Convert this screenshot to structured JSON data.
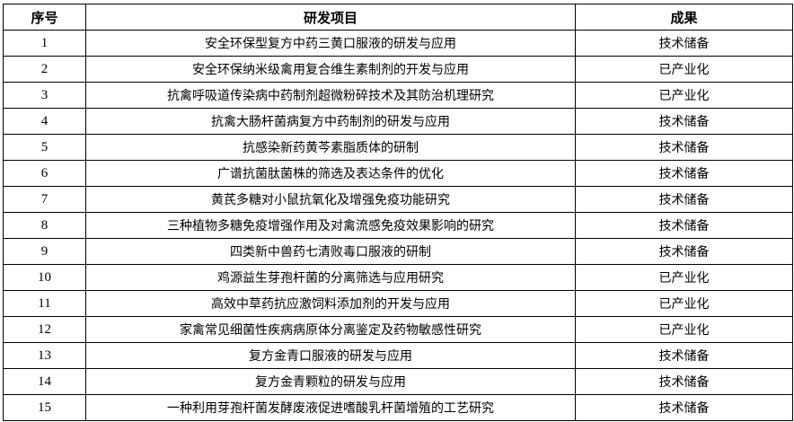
{
  "headers": {
    "index": "序号",
    "project": "研发项目",
    "result": "成果"
  },
  "rows": [
    {
      "index": "1",
      "project": "安全环保型复方中药三黄口服液的研发与应用",
      "result": "技术储备"
    },
    {
      "index": "2",
      "project": "安全环保纳米级禽用复合维生素制剂的开发与应用",
      "result": "已产业化"
    },
    {
      "index": "3",
      "project": "抗禽呼吸道传染病中药制剂超微粉碎技术及其防治机理研究",
      "result": "已产业化"
    },
    {
      "index": "4",
      "project": "抗禽大肠杆菌病复方中药制剂的研发与应用",
      "result": "技术储备"
    },
    {
      "index": "5",
      "project": "抗感染新药黄芩素脂质体的研制",
      "result": "技术储备"
    },
    {
      "index": "6",
      "project": "广谱抗菌肽菌株的筛选及表达条件的优化",
      "result": "技术储备"
    },
    {
      "index": "7",
      "project": "黄芪多糖对小鼠抗氧化及增强免疫功能研究",
      "result": "技术储备"
    },
    {
      "index": "8",
      "project": "三种植物多糖免疫增强作用及对禽流感免疫效果影响的研究",
      "result": "技术储备"
    },
    {
      "index": "9",
      "project": "四类新中兽药七清败毒口服液的研制",
      "result": "技术储备"
    },
    {
      "index": "10",
      "project": "鸡源益生芽孢杆菌的分离筛选与应用研究",
      "result": "已产业化"
    },
    {
      "index": "11",
      "project": "高效中草药抗应激饲料添加剂的开发与应用",
      "result": "已产业化"
    },
    {
      "index": "12",
      "project": "家禽常见细菌性疾病病原体分离鉴定及药物敏感性研究",
      "result": "已产业化"
    },
    {
      "index": "13",
      "project": "复方金青口服液的研发与应用",
      "result": "技术储备"
    },
    {
      "index": "14",
      "project": "复方金青颗粒的研发与应用",
      "result": "技术储备"
    },
    {
      "index": "15",
      "project": "一种利用芽孢杆菌发酵废液促进嗜酸乳杆菌增殖的工艺研究",
      "result": "技术储备"
    }
  ]
}
